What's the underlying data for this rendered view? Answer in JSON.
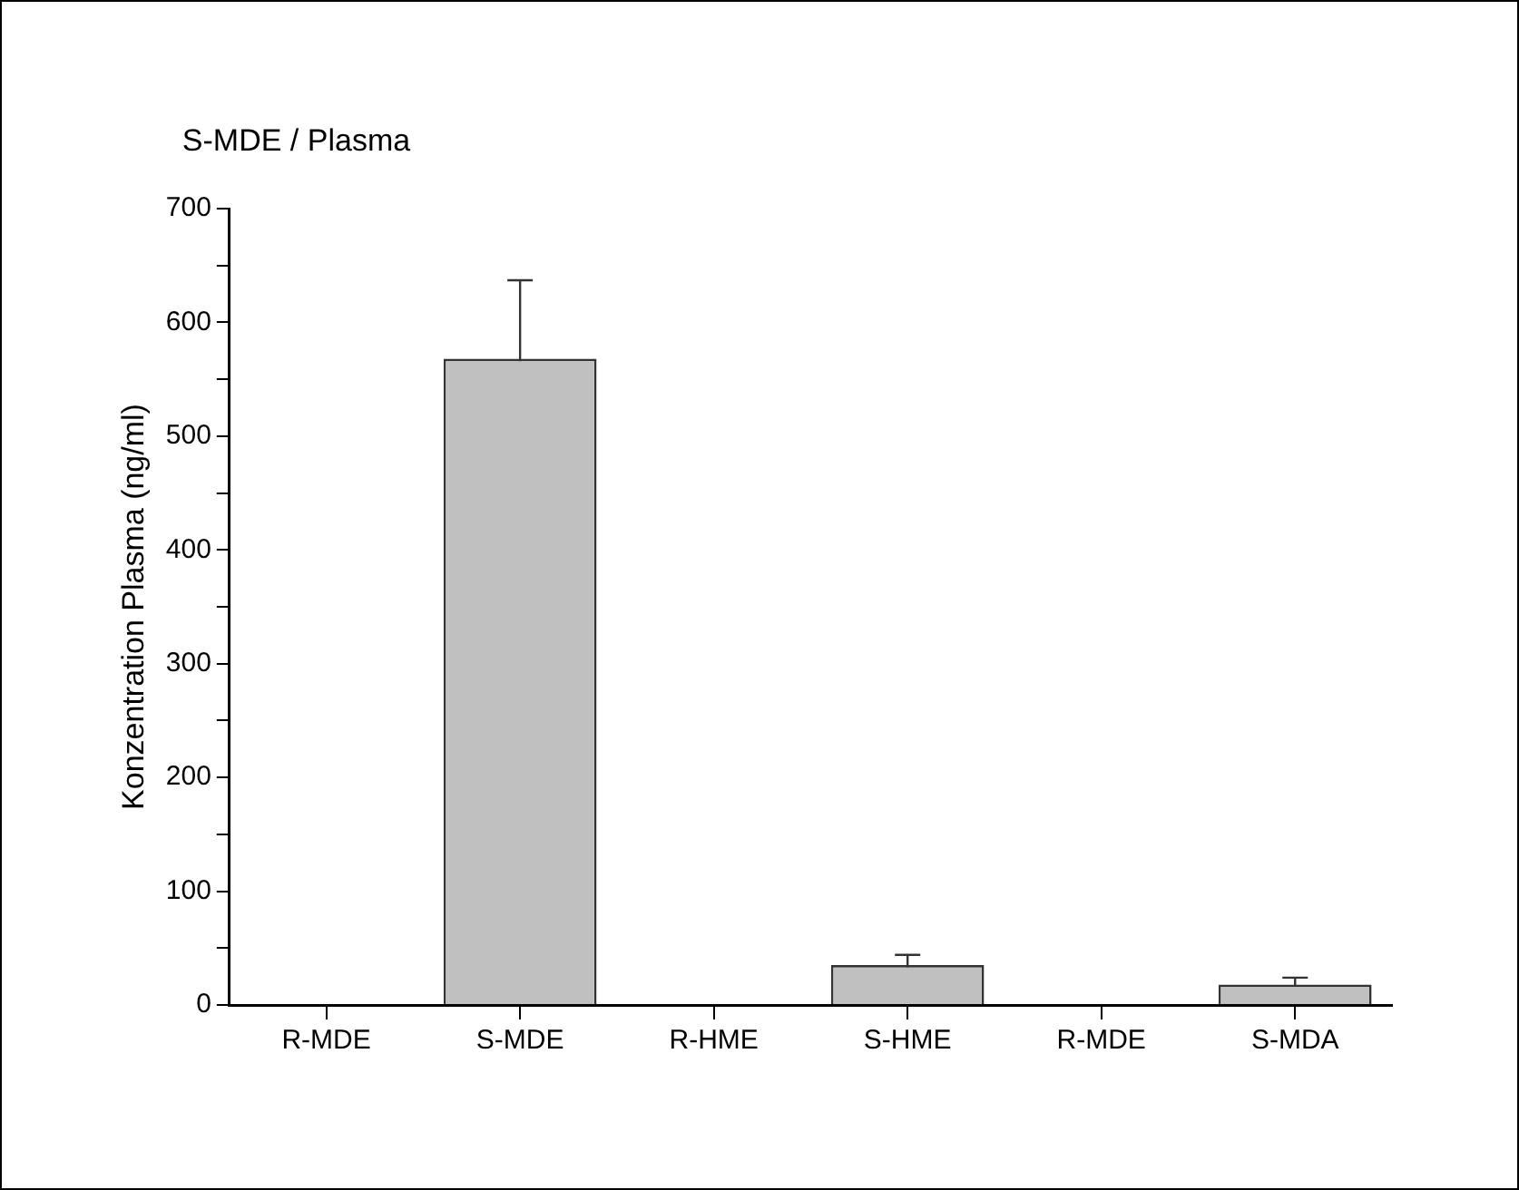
{
  "chart_data": {
    "type": "bar",
    "title": "S-MDE / Plasma",
    "ylabel": "Konzentration Plasma (ng/ml)",
    "categories": [
      "R-MDE",
      "S-MDE",
      "R-HME",
      "S-HME",
      "R-MDE",
      "S-MDA"
    ],
    "values": [
      0,
      568,
      0,
      35,
      0,
      18
    ],
    "errors": [
      null,
      69,
      null,
      9,
      null,
      6
    ],
    "color": "#c0c0c0",
    "ylim": [
      0,
      700
    ],
    "yticks": [
      0,
      {
        "value": 50,
        "label": null
      },
      100,
      {
        "value": 150,
        "label": null
      },
      200,
      {
        "value": 250,
        "label": null
      },
      300,
      {
        "value": 350,
        "label": null
      },
      400,
      {
        "value": 450,
        "label": null
      },
      500,
      {
        "value": 550,
        "label": null
      },
      600,
      {
        "value": 650,
        "label": null
      },
      700
    ],
    "grid": false,
    "legend": false
  }
}
